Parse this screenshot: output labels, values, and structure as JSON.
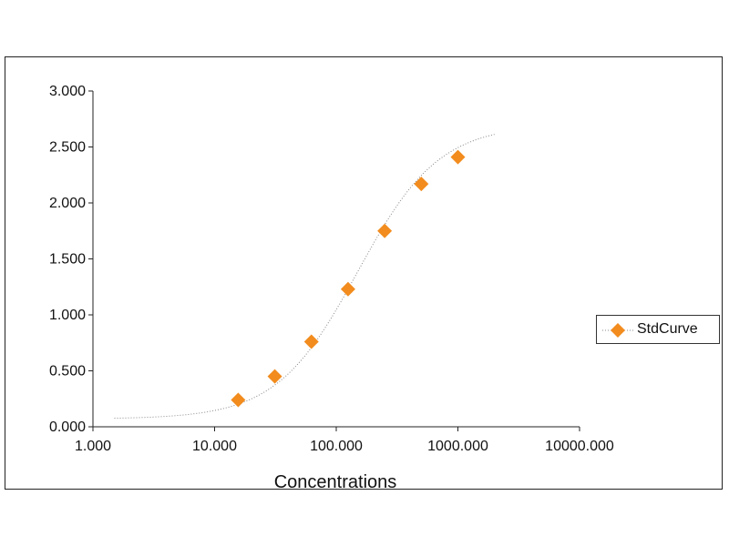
{
  "chart_data": {
    "type": "scatter",
    "title": "",
    "xlabel": "Concentrations",
    "ylabel": "",
    "x_scale": "log",
    "xlim": [
      1,
      10000
    ],
    "ylim": [
      0,
      3
    ],
    "x_tick_labels": [
      "1.000",
      "10.000",
      "100.000",
      "1000.000",
      "10000.000"
    ],
    "y_tick_labels": [
      "0.000",
      "0.500",
      "1.000",
      "1.500",
      "2.000",
      "2.500",
      "3.000"
    ],
    "grid": false,
    "legend_position": "right",
    "series": [
      {
        "name": "StdCurve",
        "color": "#f28c1e",
        "marker": "diamond",
        "points": [
          {
            "x": 15.625,
            "y": 0.24
          },
          {
            "x": 31.25,
            "y": 0.45
          },
          {
            "x": 62.5,
            "y": 0.76
          },
          {
            "x": 125,
            "y": 1.23
          },
          {
            "x": 250,
            "y": 1.75
          },
          {
            "x": 500,
            "y": 2.17
          },
          {
            "x": 1000,
            "y": 2.41
          }
        ],
        "fit_line": {
          "style": "dotted",
          "color": "#888888",
          "x_range": [
            1.5,
            2000
          ],
          "model": "4PL",
          "bottom": 0.07,
          "top": 2.7,
          "ec50": 150,
          "hill": 1.3
        }
      }
    ]
  }
}
